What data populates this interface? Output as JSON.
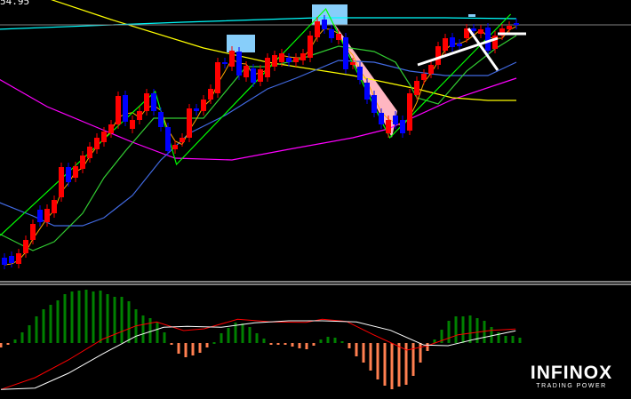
{
  "price_label": "54.95",
  "logo": {
    "brand": "INFINOX",
    "tagline": "TRADING POWER"
  },
  "colors": {
    "background": "#000000",
    "bull_candle": "#ff0000",
    "bear_candle": "#0000ff",
    "ma_fast": "#ffa500",
    "ma_green": "#32cd32",
    "ma_blue": "#4169e1",
    "ma_magenta": "#ff00ff",
    "ma_yellow": "#ffff00",
    "ma_cyan": "#00ffff",
    "price_line": "#808080",
    "zigzag": "#00ff00",
    "highlight_box": "#87cefa",
    "pink_channel": "#ffb6c1",
    "hist_positive": "#008000",
    "hist_negative": "#ff7f50",
    "macd_line": "#ffffff",
    "signal_line": "#ff0000"
  },
  "chart_data": [
    {
      "type": "candlestick",
      "title": "",
      "ylim": [
        0,
        320
      ],
      "grid": false,
      "candles_open_close": [
        [
          30,
          22
        ],
        [
          32,
          24
        ],
        [
          23,
          35
        ],
        [
          35,
          50
        ],
        [
          50,
          68
        ],
        [
          84,
          70
        ],
        [
          70,
          85
        ],
        [
          80,
          95
        ],
        [
          98,
          132
        ],
        [
          132,
          115
        ],
        [
          120,
          133
        ],
        [
          130,
          145
        ],
        [
          142,
          155
        ],
        [
          152,
          165
        ],
        [
          160,
          172
        ],
        [
          170,
          180
        ],
        [
          180,
          212
        ],
        [
          213,
          183
        ],
        [
          175,
          185
        ],
        [
          185,
          195
        ],
        [
          195,
          215
        ],
        [
          215,
          195
        ],
        [
          194,
          177
        ],
        [
          177,
          150
        ],
        [
          152,
          157
        ],
        [
          160,
          165
        ],
        [
          165,
          198
        ],
        [
          198,
          195
        ],
        [
          195,
          208
        ],
        [
          208,
          220
        ],
        [
          215,
          250
        ],
        [
          250,
          248
        ],
        [
          245,
          263
        ],
        [
          262,
          235
        ],
        [
          233,
          246
        ],
        [
          243,
          227
        ],
        [
          228,
          242
        ],
        [
          233,
          255
        ],
        [
          245,
          258
        ],
        [
          250,
          260
        ],
        [
          255,
          250
        ],
        [
          250,
          255
        ],
        [
          252,
          260
        ],
        [
          255,
          280
        ],
        [
          278,
          296
        ],
        [
          298,
          287
        ],
        [
          287,
          277
        ],
        [
          275,
          282
        ],
        [
          278,
          242
        ],
        [
          247,
          250
        ],
        [
          245,
          230
        ],
        [
          227,
          208
        ],
        [
          213,
          193
        ],
        [
          193,
          180
        ],
        [
          170,
          185
        ],
        [
          190,
          180
        ],
        [
          185,
          170
        ],
        [
          173,
          215
        ],
        [
          213,
          229
        ],
        [
          230,
          237
        ],
        [
          237,
          247
        ],
        [
          247,
          268
        ],
        [
          263,
          277
        ],
        [
          278,
          267
        ],
        [
          271,
          268
        ],
        [
          277,
          288
        ],
        [
          288,
          285
        ],
        [
          282,
          287
        ],
        [
          289,
          263
        ],
        [
          265,
          280
        ],
        [
          280,
          288
        ],
        [
          287,
          291
        ],
        [
          294,
          292
        ]
      ],
      "price_line": 292,
      "moving_averages": {
        "yellow": [
          [
            6,
            322
          ],
          [
            15,
            298
          ],
          [
            28,
            266
          ],
          [
            37,
            250
          ],
          [
            49,
            235
          ],
          [
            58,
            220
          ],
          [
            63,
            210
          ],
          [
            68,
            207
          ],
          [
            72,
            207
          ]
        ],
        "cyan": [
          [
            -1,
            287
          ],
          [
            25,
            295
          ],
          [
            44,
            300
          ],
          [
            62,
            300
          ],
          [
            72,
            299
          ]
        ],
        "magenta": [
          [
            -1,
            232
          ],
          [
            6,
            200
          ],
          [
            12,
            180
          ],
          [
            18,
            160
          ],
          [
            24,
            142
          ],
          [
            32,
            140
          ],
          [
            40,
            152
          ],
          [
            49,
            165
          ],
          [
            54,
            175
          ],
          [
            63,
            208
          ],
          [
            72,
            232
          ]
        ],
        "blue": [
          [
            -1,
            93
          ],
          [
            4,
            77
          ],
          [
            7,
            66
          ],
          [
            11,
            66
          ],
          [
            14,
            75
          ],
          [
            18,
            100
          ],
          [
            22,
            140
          ],
          [
            26,
            170
          ],
          [
            31,
            190
          ],
          [
            37,
            220
          ],
          [
            41,
            232
          ],
          [
            47,
            252
          ],
          [
            52,
            250
          ],
          [
            57,
            240
          ],
          [
            62,
            235
          ],
          [
            68,
            235
          ],
          [
            72,
            250
          ]
        ],
        "green": [
          [
            -1,
            58
          ],
          [
            4,
            38
          ],
          [
            7,
            48
          ],
          [
            11,
            80
          ],
          [
            14,
            120
          ],
          [
            17,
            150
          ],
          [
            21,
            187
          ],
          [
            25,
            187
          ],
          [
            28,
            187
          ],
          [
            34,
            245
          ],
          [
            37,
            245
          ],
          [
            41,
            252
          ],
          [
            47,
            268
          ],
          [
            52,
            262
          ],
          [
            55,
            250
          ],
          [
            57,
            225
          ],
          [
            58,
            210
          ],
          [
            61,
            203
          ],
          [
            65,
            240
          ],
          [
            69,
            265
          ],
          [
            72,
            280
          ]
        ]
      },
      "zigzag": [
        [
          -0.6,
          55
        ],
        [
          21.2,
          217
        ],
        [
          24.2,
          135
        ],
        [
          45.2,
          310
        ],
        [
          54.2,
          165
        ],
        [
          71.2,
          304
        ]
      ]
    },
    {
      "type": "bar",
      "title": "",
      "histogram": [
        -15,
        -5,
        12,
        36,
        60,
        90,
        114,
        129,
        144,
        165,
        174,
        177,
        180,
        174,
        177,
        165,
        156,
        156,
        141,
        114,
        93,
        84,
        69,
        36,
        -3,
        -36,
        -48,
        -42,
        -33,
        -15,
        3,
        33,
        51,
        69,
        66,
        54,
        33,
        15,
        -3,
        -5,
        -5,
        -12,
        -18,
        -21,
        -9,
        12,
        21,
        18,
        6,
        -18,
        -45,
        -66,
        -93,
        -123,
        -144,
        -156,
        -147,
        -141,
        -111,
        -66,
        -27,
        12,
        45,
        75,
        90,
        90,
        93,
        84,
        75,
        54,
        36,
        24,
        24,
        18
      ],
      "macd_line": [
        [
          0,
          -157
        ],
        [
          4.8,
          -152
        ],
        [
          9.5,
          -102
        ],
        [
          14.3,
          -37
        ],
        [
          19,
          23
        ],
        [
          22.9,
          53
        ],
        [
          26.2,
          56
        ],
        [
          31,
          53
        ],
        [
          35.7,
          68
        ],
        [
          40.5,
          75
        ],
        [
          45.2,
          75
        ],
        [
          50,
          71
        ],
        [
          54.8,
          43
        ],
        [
          59.5,
          -7
        ],
        [
          62.9,
          -9
        ],
        [
          66.7,
          13
        ],
        [
          72.4,
          41
        ]
      ],
      "signal_line": [
        [
          0,
          -157
        ],
        [
          4.8,
          -117
        ],
        [
          9.5,
          -57
        ],
        [
          14.3,
          13
        ],
        [
          19,
          58
        ],
        [
          21.9,
          71
        ],
        [
          25.7,
          42
        ],
        [
          28.6,
          48
        ],
        [
          33.3,
          80
        ],
        [
          38.1,
          71
        ],
        [
          42.9,
          70
        ],
        [
          45.2,
          80
        ],
        [
          48.6,
          73
        ],
        [
          52.4,
          28
        ],
        [
          57.1,
          -24
        ],
        [
          60,
          -9
        ],
        [
          64.3,
          28
        ],
        [
          69,
          43
        ],
        [
          72.4,
          47
        ]
      ]
    }
  ]
}
